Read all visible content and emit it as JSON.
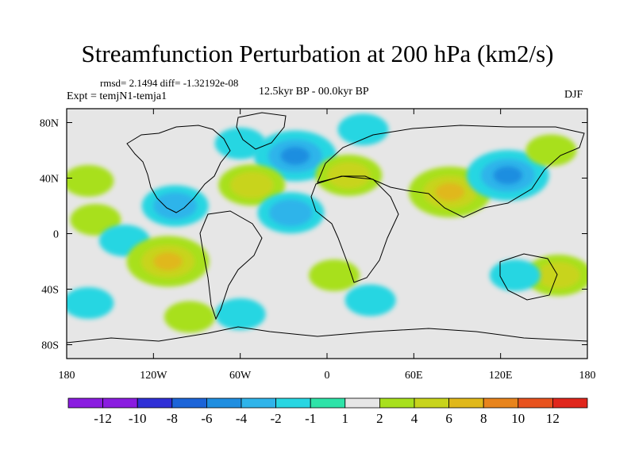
{
  "chart_data": {
    "type": "heatmap",
    "title": "Streamfunction Perturbation at 200 hPa (km2/s)",
    "stats_label": "rmsd= 2.1494 diff= -1.32192e-08",
    "experiment_label": "Expt = temjN1-temja1",
    "period_label": "12.5kyr BP - 00.0kyr BP",
    "season_label": "DJF",
    "xlim": [
      -180,
      180
    ],
    "ylim": [
      -90,
      90
    ],
    "x_ticks": [
      {
        "value": -180,
        "label": "180"
      },
      {
        "value": -120,
        "label": "120W"
      },
      {
        "value": -60,
        "label": "60W"
      },
      {
        "value": 0,
        "label": "0"
      },
      {
        "value": 60,
        "label": "60E"
      },
      {
        "value": 120,
        "label": "120E"
      },
      {
        "value": 180,
        "label": "180"
      }
    ],
    "y_ticks": [
      {
        "value": 80,
        "label": "80N"
      },
      {
        "value": 40,
        "label": "40N"
      },
      {
        "value": 0,
        "label": "0"
      },
      {
        "value": -40,
        "label": "40S"
      },
      {
        "value": -80,
        "label": "80S"
      }
    ],
    "colorbar": {
      "labels": [
        "-12",
        "-10",
        "-8",
        "-6",
        "-4",
        "-2",
        "-1",
        "1",
        "2",
        "4",
        "6",
        "8",
        "10",
        "12"
      ],
      "colors": [
        "#8a1ce0",
        "#2f2fd6",
        "#1c64d8",
        "#1f8ee0",
        "#2fb4ea",
        "#28d6e2",
        "#2ee3a8",
        "#e6e6e6",
        "#a8e01e",
        "#c8d41c",
        "#e0b81a",
        "#e8841c",
        "#e8521e",
        "#e0261c"
      ]
    },
    "features": [
      {
        "name": "positive anomaly",
        "lon": -165,
        "lat": 38,
        "value": 2
      },
      {
        "name": "positive anomaly",
        "lon": -160,
        "lat": 10,
        "value": 2
      },
      {
        "name": "negative anomaly",
        "lon": -140,
        "lat": -5,
        "value": -2
      },
      {
        "name": "positive anomaly",
        "lon": -110,
        "lat": -20,
        "value": 6
      },
      {
        "name": "negative anomaly",
        "lon": -105,
        "lat": 20,
        "value": -4
      },
      {
        "name": "negative anomaly",
        "lon": -60,
        "lat": 65,
        "value": -2
      },
      {
        "name": "negative anomaly",
        "lon": -22,
        "lat": 56,
        "value": -6
      },
      {
        "name": "positive anomaly",
        "lon": -52,
        "lat": 35,
        "value": 4
      },
      {
        "name": "negative anomaly",
        "lon": -25,
        "lat": 15,
        "value": -4
      },
      {
        "name": "positive anomaly",
        "lon": 5,
        "lat": -30,
        "value": 2
      },
      {
        "name": "positive anomaly",
        "lon": 15,
        "lat": 42,
        "value": 4
      },
      {
        "name": "negative anomaly",
        "lon": 25,
        "lat": 75,
        "value": -2
      },
      {
        "name": "positive anomaly",
        "lon": 85,
        "lat": 30,
        "value": 6
      },
      {
        "name": "negative anomaly",
        "lon": 125,
        "lat": 42,
        "value": -6
      },
      {
        "name": "positive anomaly",
        "lon": 155,
        "lat": 60,
        "value": 2
      },
      {
        "name": "positive anomaly",
        "lon": 160,
        "lat": -30,
        "value": 4
      },
      {
        "name": "negative anomaly",
        "lon": 130,
        "lat": -30,
        "value": -2
      },
      {
        "name": "negative anomaly",
        "lon": 30,
        "lat": -48,
        "value": -2
      },
      {
        "name": "negative anomaly",
        "lon": -165,
        "lat": -50,
        "value": -2
      },
      {
        "name": "negative anomaly",
        "lon": -60,
        "lat": -58,
        "value": -2
      },
      {
        "name": "positive anomaly",
        "lon": -95,
        "lat": -60,
        "value": 2
      }
    ]
  }
}
